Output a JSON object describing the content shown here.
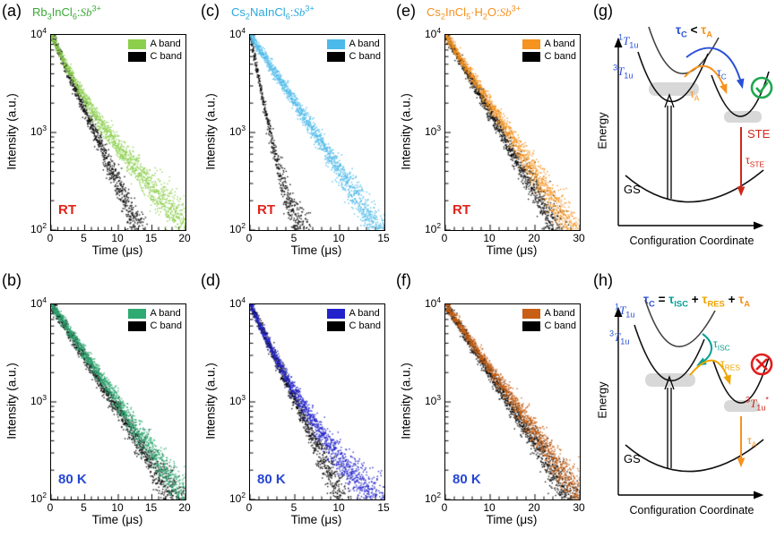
{
  "chart_data": {
    "type": "scatter",
    "note": "Semi-log photoluminescence decay traces; point clouds synthesized from decay_components [amplitude_counts, tau_microseconds] per series",
    "xlabel": "Time (μs)",
    "ylabel": "Intensity (a.u.)",
    "ytick_labels_html": [
      "10<sup>4</sup>",
      "10<sup>3</sup>",
      "10<sup>2</sup>"
    ],
    "ylim_log10": [
      2,
      4
    ],
    "panels": [
      {
        "id": "a",
        "letter": "(a)",
        "title_html": "Rb<sub>3</sub>InCl<sub>6</sub>:<i>Sb</i><sup>3+</sup>",
        "title_color": "#3aaa35",
        "temp": {
          "label": "RT",
          "color": "#e2231a"
        },
        "xmax": 20,
        "xticks": [
          0,
          5,
          10,
          15,
          20
        ],
        "x_minor_step": 1,
        "series": [
          {
            "name": "A band",
            "color": "#8ccf4d",
            "decay_components": [
              [
                6500,
                2.3
              ],
              [
                3500,
                5.8
              ]
            ]
          },
          {
            "name": "C band",
            "color": "#000000",
            "decay_components": [
              [
                10000,
                2.8
              ]
            ]
          }
        ]
      },
      {
        "id": "b",
        "letter": "(b)",
        "temp": {
          "label": "80 K",
          "color": "#2646d4"
        },
        "xmax": 20,
        "xticks": [
          0,
          5,
          10,
          15,
          20
        ],
        "x_minor_step": 1,
        "series": [
          {
            "name": "A band",
            "color": "#2eaa72",
            "decay_components": [
              [
                10000,
                4.3
              ]
            ]
          },
          {
            "name": "C band",
            "color": "#000000",
            "decay_components": [
              [
                10000,
                4.0
              ]
            ]
          }
        ]
      },
      {
        "id": "c",
        "letter": "(c)",
        "title_html": "Cs<sub>2</sub>NaInCl<sub>6</sub>:<i>Sb</i><sup>3+</sup>",
        "title_color": "#29a8df",
        "temp": {
          "label": "RT",
          "color": "#e2231a"
        },
        "xmax": 15,
        "xticks": [
          0,
          5,
          10,
          15
        ],
        "x_minor_step": 1,
        "series": [
          {
            "name": "A band",
            "color": "#4bb9e9",
            "decay_components": [
              [
                10000,
                3.1
              ]
            ]
          },
          {
            "name": "C band",
            "color": "#000000",
            "decay_components": [
              [
                9500,
                0.85
              ],
              [
                500,
                3.2
              ]
            ]
          }
        ]
      },
      {
        "id": "d",
        "letter": "(d)",
        "temp": {
          "label": "80 K",
          "color": "#2646d4"
        },
        "xmax": 15,
        "xticks": [
          0,
          5,
          10,
          15
        ],
        "x_minor_step": 1,
        "series": [
          {
            "name": "A band",
            "color": "#2222cc",
            "decay_components": [
              [
                8000,
                1.9
              ],
              [
                2000,
                4.6
              ]
            ]
          },
          {
            "name": "C band",
            "color": "#000000",
            "decay_components": [
              [
                10000,
                2.2
              ]
            ]
          }
        ]
      },
      {
        "id": "e",
        "letter": "(e)",
        "title_html": "Cs<sub>2</sub>InCl<sub>5</sub>·H<sub>2</sub>O:<i>Sb</i><sup>3+</sup>",
        "title_color": "#f59120",
        "temp": {
          "label": "RT",
          "color": "#e2231a"
        },
        "xmax": 30,
        "xticks": [
          0,
          10,
          20,
          30
        ],
        "x_minor_step": 2,
        "series": [
          {
            "name": "A band",
            "color": "#f6921e",
            "decay_components": [
              [
                10000,
                6.1
              ]
            ]
          },
          {
            "name": "C band",
            "color": "#000000",
            "decay_components": [
              [
                10000,
                5.4
              ]
            ]
          }
        ]
      },
      {
        "id": "f",
        "letter": "(f)",
        "temp": {
          "label": "80 K",
          "color": "#2646d4"
        },
        "xmax": 30,
        "xticks": [
          0,
          10,
          20,
          30
        ],
        "x_minor_step": 2,
        "series": [
          {
            "name": "A band",
            "color": "#c85f14",
            "decay_components": [
              [
                10000,
                6.6
              ]
            ]
          },
          {
            "name": "C band",
            "color": "#000000",
            "decay_components": [
              [
                10000,
                6.1
              ]
            ]
          }
        ]
      }
    ]
  },
  "diagrams": {
    "g": {
      "letter": "(g)",
      "header_html": "<span style='color:#2850d9'>τ<sub>C</sub></span> &lt; <span style='color:#f6921e'>τ<sub>A</sub></span>",
      "labels": {
        "state_singlet_html": "<sup>1</sup><i>T</i><sub>1u</sub>",
        "state_triplet_html": "<sup>3</sup><i>T</i><sub>1u</sub>",
        "tau_c_html": "τ<sub>C</sub>",
        "tau_a_html": "τ<sub>A</sub>",
        "ste": "STE",
        "tau_ste_html": "τ<sub>STE</sub>",
        "gs": "GS",
        "energy": "Energy",
        "xaxis": "Configuration Coordinate"
      },
      "colors": {
        "states": "#2850d9",
        "tau_c": "#2850d9",
        "tau_a": "#f6921e",
        "ste": "#d02718",
        "tau_ste": "#d02718",
        "check": "#1fa74f"
      }
    },
    "h": {
      "letter": "(h)",
      "header_html": "<span style='color:#2850d9'>τ<sub>C</sub></span> = <span style='color:#00a093'>τ<sub>ISC</sub></span> + <span style='color:#eda400'>τ<sub>RES</sub></span> + <span style='color:#f6921e'>τ<sub>A</sub></span>",
      "labels": {
        "state_singlet_html": "<sup>1</sup><i>T</i><sub>1u</sub>",
        "state_triplet_html": "<sup>3</sup><i>T</i><sub>1u</sub>",
        "state_triplet_ste_html": "<sup>3</sup><i>T</i><sub>1u</sub><sup>*</sup>",
        "tau_isc_html": "τ<sub>ISC</sub>",
        "tau_res_html": "τ<sub>RES</sub>",
        "tau_a_html": "τ<sub>A</sub>",
        "gs": "GS",
        "energy": "Energy",
        "xaxis": "Configuration Coordinate"
      },
      "colors": {
        "states": "#2850d9",
        "tau_isc": "#00a093",
        "tau_res": "#eda400",
        "tau_a": "#f6921e",
        "state_ste": "#d02718",
        "cross": "#e31c1c"
      }
    }
  }
}
